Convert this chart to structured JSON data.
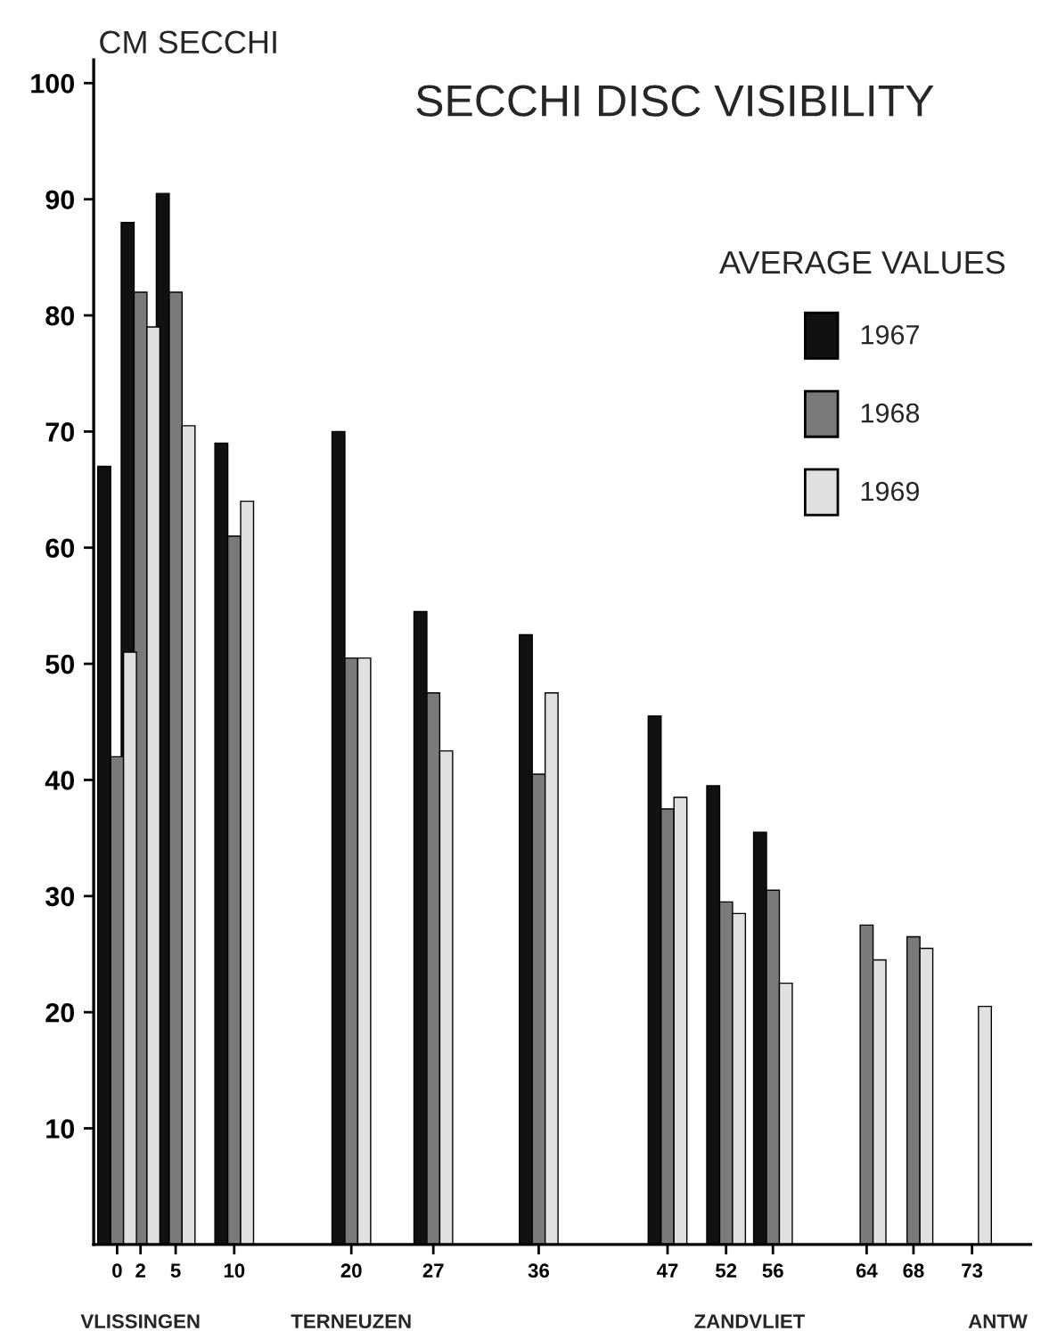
{
  "chart_data": {
    "type": "bar",
    "title": "SECCHI DISC VISIBILITY",
    "ylabel": "CM SECCHI",
    "legend_title": "AVERAGE VALUES",
    "x": [
      0,
      2,
      5,
      10,
      20,
      27,
      36,
      47,
      52,
      56,
      64,
      68,
      73
    ],
    "series": [
      {
        "name": "1967",
        "color": "#111111",
        "values": [
          67,
          88,
          90.5,
          69,
          70,
          54.5,
          52.5,
          45.5,
          39.5,
          35.5,
          null,
          null,
          null
        ]
      },
      {
        "name": "1968",
        "color": "#7a7a7a",
        "values": [
          42,
          82,
          82,
          61,
          50.5,
          47.5,
          40.5,
          37.5,
          29.5,
          30.5,
          27.5,
          26.5,
          null
        ]
      },
      {
        "name": "1969",
        "color": "#e0e0e0",
        "values": [
          51,
          79,
          70.5,
          64,
          50.5,
          42.5,
          47.5,
          38.5,
          28.5,
          22.5,
          24.5,
          25.5,
          20.5
        ]
      }
    ],
    "xlim": [
      -2,
      78
    ],
    "xticks": [
      0,
      2,
      5,
      10,
      20,
      27,
      36,
      47,
      52,
      56,
      64,
      68,
      73
    ],
    "ylim": [
      0,
      102
    ],
    "yticks": [
      10,
      20,
      30,
      40,
      50,
      60,
      70,
      80,
      90,
      100
    ],
    "annotations": [
      "VLISSINGEN",
      "TERNEUZEN",
      "ZANDVLIET",
      "ANTW"
    ],
    "legend": "top right",
    "grid": false
  }
}
